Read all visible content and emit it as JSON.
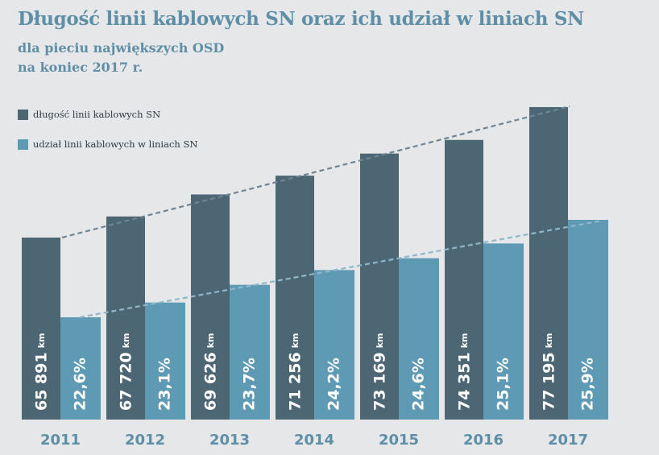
{
  "title": "Długość linii kablowych SN oraz ich udział w liniach SN",
  "subtitle_1": "dla pieciu największych OSD",
  "subtitle_2": "na koniec 2017 r.",
  "colors": {
    "length": "#4c6674",
    "share": "#5f9ab5",
    "trend_length": "#6f8593",
    "trend_share": "#8fb7cb"
  },
  "chart_data": {
    "type": "bar",
    "categories": [
      "2011",
      "2012",
      "2013",
      "2014",
      "2015",
      "2016",
      "2017"
    ],
    "series": [
      {
        "name": "długość linii kablowych SN",
        "values": [
          65891,
          67720,
          69626,
          71256,
          73169,
          74351,
          77195
        ],
        "labels": [
          "65 891",
          "67 720",
          "69 626",
          "71 256",
          "73 169",
          "74 351",
          "77 195"
        ],
        "unit": "km"
      },
      {
        "name": "udział linii kablowych w liniach SN",
        "values": [
          22.6,
          23.1,
          23.7,
          24.2,
          24.6,
          25.1,
          25.9
        ],
        "labels": [
          "22,6%",
          "23,1%",
          "23,7%",
          "24,2%",
          "24,6%",
          "25,1%",
          "25,9%"
        ]
      }
    ],
    "trend_lines": true,
    "legend_position": "top-left"
  }
}
